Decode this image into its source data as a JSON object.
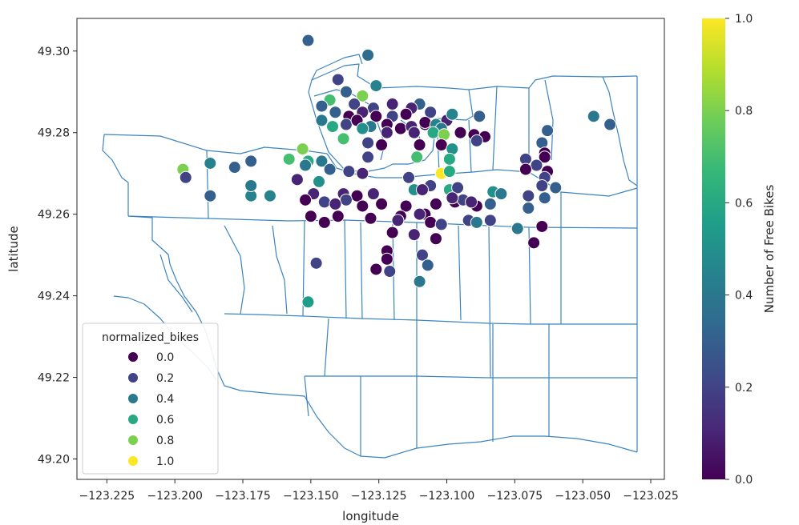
{
  "chart_data": {
    "type": "scatter",
    "title": "",
    "xlabel": "longitude",
    "ylabel": "latitude",
    "xlim": [
      -123.236,
      -123.02
    ],
    "ylim": [
      49.195,
      49.308
    ],
    "xticks": [
      -123.225,
      -123.2,
      -123.175,
      -123.15,
      -123.125,
      -123.1,
      -123.075,
      -123.05,
      -123.025
    ],
    "xtick_labels": [
      "−123.225",
      "−123.200",
      "−123.175",
      "−123.150",
      "−123.125",
      "−123.100",
      "−123.075",
      "−123.050",
      "−123.025"
    ],
    "yticks": [
      49.2,
      49.22,
      49.24,
      49.26,
      49.28,
      49.3
    ],
    "ytick_labels": [
      "49.20",
      "49.22",
      "49.24",
      "49.26",
      "49.28",
      "49.30"
    ],
    "colormap": "viridis",
    "grid": false,
    "colorbar": {
      "label": "Number of Free Bikes",
      "range": [
        0,
        1
      ],
      "ticks": [
        0,
        0.2,
        0.4,
        0.6,
        0.8,
        1.0
      ],
      "tick_labels": [
        "0.0",
        "0.2",
        "0.4",
        "0.6",
        "0.8",
        "1.0"
      ]
    },
    "legend": {
      "title": "normalized_bikes",
      "placement": "lower-left",
      "entries": [
        {
          "label": "0.0",
          "value": 0.0
        },
        {
          "label": "0.2",
          "value": 0.2
        },
        {
          "label": "0.4",
          "value": 0.4
        },
        {
          "label": "0.6",
          "value": 0.6
        },
        {
          "label": "0.8",
          "value": 0.8
        },
        {
          "label": "1.0",
          "value": 1.0
        }
      ]
    },
    "points": [
      [
        -123.151,
        49.3026,
        0.3
      ],
      [
        -123.129,
        49.299,
        0.35
      ],
      [
        -123.14,
        49.293,
        0.2
      ],
      [
        -123.137,
        49.29,
        0.3
      ],
      [
        -123.126,
        49.2915,
        0.45
      ],
      [
        -123.131,
        49.289,
        0.8
      ],
      [
        -123.143,
        49.288,
        0.7
      ],
      [
        -123.146,
        49.2865,
        0.3
      ],
      [
        -123.134,
        49.287,
        0.2
      ],
      [
        -123.127,
        49.286,
        0.2
      ],
      [
        -123.12,
        49.287,
        0.1
      ],
      [
        -123.11,
        49.287,
        0.3
      ],
      [
        -123.106,
        49.285,
        0.2
      ],
      [
        -123.113,
        49.286,
        0.1
      ],
      [
        -123.141,
        49.285,
        0.3
      ],
      [
        -123.136,
        49.284,
        0.0
      ],
      [
        -123.131,
        49.285,
        0.1
      ],
      [
        -123.126,
        49.284,
        0.0
      ],
      [
        -123.12,
        49.284,
        0.2
      ],
      [
        -123.115,
        49.2845,
        0.0
      ],
      [
        -123.108,
        49.282,
        0.0
      ],
      [
        -123.1,
        49.283,
        0.1
      ],
      [
        -123.098,
        49.2845,
        0.45
      ],
      [
        -123.088,
        49.284,
        0.3
      ],
      [
        -123.046,
        49.284,
        0.4
      ],
      [
        -123.146,
        49.283,
        0.4
      ],
      [
        -123.137,
        49.282,
        0.2
      ],
      [
        -123.133,
        49.283,
        0.0
      ],
      [
        -123.128,
        49.2815,
        0.4
      ],
      [
        -123.122,
        49.282,
        0.0
      ],
      [
        -123.117,
        49.281,
        0.0
      ],
      [
        -123.113,
        49.2815,
        0.1
      ],
      [
        -123.108,
        49.2825,
        0.0
      ],
      [
        -123.104,
        49.282,
        0.45
      ],
      [
        -123.102,
        49.281,
        0.4
      ],
      [
        -123.04,
        49.282,
        0.3
      ],
      [
        -123.142,
        49.2815,
        0.6
      ],
      [
        -123.131,
        49.281,
        0.5
      ],
      [
        -123.122,
        49.28,
        0.1
      ],
      [
        -123.112,
        49.28,
        0.1
      ],
      [
        -123.105,
        49.28,
        0.6
      ],
      [
        -123.101,
        49.2795,
        0.8
      ],
      [
        -123.095,
        49.28,
        0.0
      ],
      [
        -123.09,
        49.2795,
        0.0
      ],
      [
        -123.086,
        49.279,
        0.0
      ],
      [
        -123.089,
        49.278,
        0.2
      ],
      [
        -123.063,
        49.2805,
        0.3
      ],
      [
        -123.138,
        49.2785,
        0.7
      ],
      [
        -123.129,
        49.2775,
        0.2
      ],
      [
        -123.124,
        49.277,
        0.0
      ],
      [
        -123.11,
        49.277,
        0.0
      ],
      [
        -123.102,
        49.277,
        0.0
      ],
      [
        -123.098,
        49.276,
        0.5
      ],
      [
        -123.065,
        49.2775,
        0.3
      ],
      [
        -123.064,
        49.275,
        0.0
      ],
      [
        -123.153,
        49.276,
        0.8
      ],
      [
        -123.158,
        49.2735,
        0.7
      ],
      [
        -123.151,
        49.273,
        0.6
      ],
      [
        -123.146,
        49.273,
        0.4
      ],
      [
        -123.172,
        49.273,
        0.3
      ],
      [
        -123.129,
        49.274,
        0.2
      ],
      [
        -123.111,
        49.274,
        0.7
      ],
      [
        -123.099,
        49.2735,
        0.6
      ],
      [
        -123.071,
        49.2735,
        0.2
      ],
      [
        -123.064,
        49.274,
        0.0
      ],
      [
        -123.067,
        49.272,
        0.2
      ],
      [
        -123.063,
        49.2705,
        0.0
      ],
      [
        -123.197,
        49.271,
        0.8
      ],
      [
        -123.187,
        49.2725,
        0.45
      ],
      [
        -123.178,
        49.2715,
        0.3
      ],
      [
        -123.152,
        49.272,
        0.4
      ],
      [
        -123.143,
        49.271,
        0.3
      ],
      [
        -123.136,
        49.2705,
        0.2
      ],
      [
        -123.131,
        49.27,
        0.1
      ],
      [
        -123.102,
        49.27,
        1.0
      ],
      [
        -123.099,
        49.2705,
        0.6
      ],
      [
        -123.071,
        49.271,
        0.0
      ],
      [
        -123.064,
        49.269,
        0.2
      ],
      [
        -123.196,
        49.269,
        0.2
      ],
      [
        -123.155,
        49.2685,
        0.1
      ],
      [
        -123.147,
        49.268,
        0.5
      ],
      [
        -123.114,
        49.269,
        0.2
      ],
      [
        -123.106,
        49.267,
        0.2
      ],
      [
        -123.099,
        49.266,
        0.6
      ],
      [
        -123.096,
        49.2665,
        0.2
      ],
      [
        -123.112,
        49.266,
        0.5
      ],
      [
        -123.109,
        49.266,
        0.1
      ],
      [
        -123.065,
        49.267,
        0.2
      ],
      [
        -123.06,
        49.2665,
        0.3
      ],
      [
        -123.187,
        49.2645,
        0.3
      ],
      [
        -123.172,
        49.2645,
        0.45
      ],
      [
        -123.165,
        49.2645,
        0.45
      ],
      [
        -123.149,
        49.265,
        0.1
      ],
      [
        -123.138,
        49.265,
        0.1
      ],
      [
        -123.127,
        49.265,
        0.1
      ],
      [
        -123.133,
        49.2645,
        0.0
      ],
      [
        -123.083,
        49.2655,
        0.5
      ],
      [
        -123.08,
        49.265,
        0.4
      ],
      [
        -123.07,
        49.2645,
        0.2
      ],
      [
        -123.064,
        49.264,
        0.3
      ],
      [
        -123.172,
        49.267,
        0.4
      ],
      [
        -123.152,
        49.2635,
        0.0
      ],
      [
        -123.145,
        49.263,
        0.2
      ],
      [
        -123.137,
        49.2635,
        0.2
      ],
      [
        -123.141,
        49.2625,
        0.1
      ],
      [
        -123.131,
        49.262,
        0.0
      ],
      [
        -123.124,
        49.2625,
        0.0
      ],
      [
        -123.115,
        49.262,
        0.0
      ],
      [
        -123.104,
        49.2625,
        0.0
      ],
      [
        -123.097,
        49.263,
        0.0
      ],
      [
        -123.094,
        49.2635,
        0.2
      ],
      [
        -123.089,
        49.262,
        0.0
      ],
      [
        -123.084,
        49.2625,
        0.3
      ],
      [
        -123.07,
        49.2615,
        0.3
      ],
      [
        -123.091,
        49.263,
        0.1
      ],
      [
        -123.098,
        49.264,
        0.1
      ],
      [
        -123.15,
        49.2595,
        0.0
      ],
      [
        -123.145,
        49.258,
        0.0
      ],
      [
        -123.14,
        49.2595,
        0.0
      ],
      [
        -123.128,
        49.259,
        0.0
      ],
      [
        -123.117,
        49.2595,
        0.0
      ],
      [
        -123.108,
        49.26,
        0.0
      ],
      [
        -123.106,
        49.258,
        0.0
      ],
      [
        -123.102,
        49.2575,
        0.2
      ],
      [
        -123.092,
        49.2585,
        0.2
      ],
      [
        -123.089,
        49.258,
        0.4
      ],
      [
        -123.084,
        49.2585,
        0.2
      ],
      [
        -123.074,
        49.2565,
        0.4
      ],
      [
        -123.065,
        49.257,
        0.0
      ],
      [
        -123.118,
        49.2585,
        0.1
      ],
      [
        -123.11,
        49.26,
        0.1
      ],
      [
        -123.12,
        49.2555,
        0.0
      ],
      [
        -123.112,
        49.255,
        0.1
      ],
      [
        -123.104,
        49.254,
        0.0
      ],
      [
        -123.068,
        49.253,
        0.0
      ],
      [
        -123.122,
        49.251,
        0.0
      ],
      [
        -123.109,
        49.25,
        0.2
      ],
      [
        -123.122,
        49.249,
        0.0
      ],
      [
        -123.148,
        49.248,
        0.2
      ],
      [
        -123.107,
        49.2475,
        0.3
      ],
      [
        -123.126,
        49.2465,
        0.0
      ],
      [
        -123.121,
        49.246,
        0.2
      ],
      [
        -123.11,
        49.2435,
        0.4
      ],
      [
        -123.151,
        49.2385,
        0.55
      ]
    ]
  }
}
